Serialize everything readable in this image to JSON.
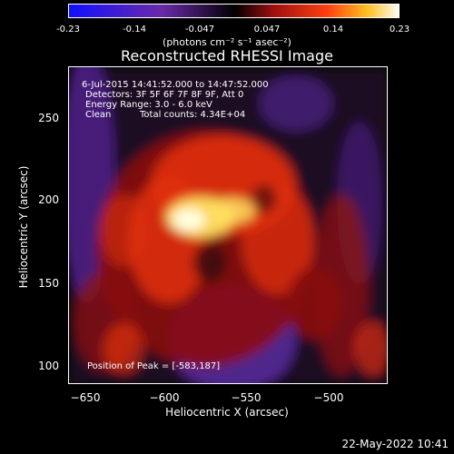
{
  "colorbar": {
    "ticks": [
      "-0.23",
      "-0.14",
      "-0.047",
      "0.047",
      "0.14",
      "0.23"
    ],
    "units": "(photons cm⁻² s⁻¹ asec⁻²)"
  },
  "title": "Reconstructed RHESSI Image",
  "info": {
    "time_range": "6-Jul-2015 14:41:52.000 to 14:47:52.000",
    "detectors": "Detectors: 3F 5F 6F 7F 8F 9F, Att 0",
    "energy": "Energy Range: 3.0 - 6.0 keV",
    "algorithm": "Clean",
    "counts": "Total counts: 4.34E+04",
    "peak": "Position of Peak = [-583,187]"
  },
  "axes": {
    "xlabel": "Heliocentric X (arcsec)",
    "ylabel": "Heliocentric Y (arcsec)",
    "xticks": [
      "−650",
      "−600",
      "−550",
      "−500"
    ],
    "yticks": [
      "250",
      "200",
      "150",
      "100"
    ]
  },
  "timestamp": "22-May-2022 10:41",
  "map_colors": {
    "negative": "#5a2aa0",
    "zero": "#000000",
    "low": "#8a1010",
    "mid": "#e03010",
    "high": "#ffe060",
    "peak": "#ffffe0"
  }
}
